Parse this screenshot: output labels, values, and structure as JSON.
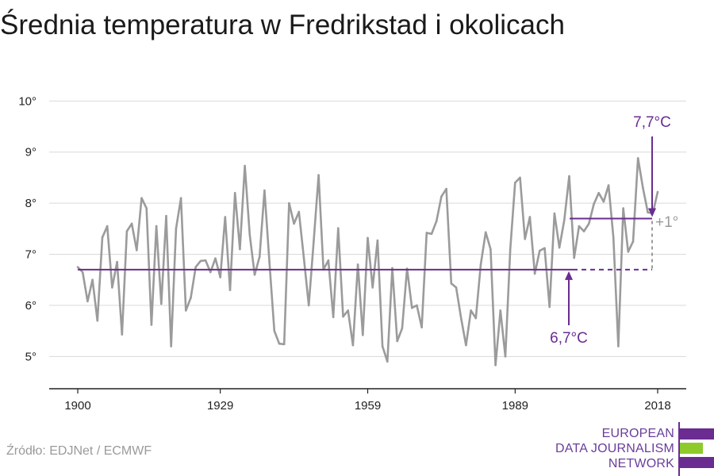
{
  "title": "Średnia temperatura w Fredrikstad i okolicach",
  "source": "Źródło: EDJNet / ECMWF",
  "logo": {
    "lines": [
      "EUROPEAN",
      "DATA JOURNALISM",
      "NETWORK"
    ],
    "colors": {
      "purple": "#6a2c91",
      "green": "#8ecb2a"
    }
  },
  "colors": {
    "line": "#9b9b9b",
    "accent": "#6a2c91",
    "grid": "#d9d9d9",
    "gray_label": "#9b9b9b"
  },
  "chart_data": {
    "type": "line",
    "title": "Średnia temperatura w Fredrikstad i okolicach",
    "xlabel": "",
    "ylabel": "",
    "x_ticks": [
      "1900",
      "1929",
      "1959",
      "1989",
      "2018"
    ],
    "y_ticks": [
      "5°",
      "6°",
      "7°",
      "8°",
      "9°",
      "10°"
    ],
    "xlim": [
      1900,
      2018
    ],
    "ylim": [
      4.2,
      10.3
    ],
    "grid": true,
    "x": [
      1900,
      1901,
      1902,
      1903,
      1904,
      1905,
      1906,
      1907,
      1908,
      1909,
      1910,
      1911,
      1912,
      1913,
      1914,
      1915,
      1916,
      1917,
      1918,
      1919,
      1920,
      1921,
      1922,
      1923,
      1924,
      1925,
      1926,
      1927,
      1928,
      1929,
      1930,
      1931,
      1932,
      1933,
      1934,
      1935,
      1936,
      1937,
      1938,
      1939,
      1940,
      1941,
      1942,
      1943,
      1944,
      1945,
      1946,
      1947,
      1948,
      1949,
      1950,
      1951,
      1952,
      1953,
      1954,
      1955,
      1956,
      1957,
      1958,
      1959,
      1960,
      1961,
      1962,
      1963,
      1964,
      1965,
      1966,
      1967,
      1968,
      1969,
      1970,
      1971,
      1972,
      1973,
      1974,
      1975,
      1976,
      1977,
      1978,
      1979,
      1980,
      1981,
      1982,
      1983,
      1984,
      1985,
      1986,
      1987,
      1988,
      1989,
      1990,
      1991,
      1992,
      1993,
      1994,
      1995,
      1996,
      1997,
      1998,
      1999,
      2000,
      2001,
      2002,
      2003,
      2004,
      2005,
      2006,
      2007,
      2008,
      2009,
      2010,
      2011,
      2012,
      2013,
      2014,
      2015,
      2016,
      2017,
      2018
    ],
    "series": [
      {
        "values": [
          6.75,
          6.65,
          6.08,
          6.5,
          5.7,
          7.33,
          7.55,
          6.35,
          6.85,
          5.43,
          7.45,
          7.6,
          7.08,
          8.1,
          7.9,
          5.62,
          7.55,
          6.03,
          7.75,
          5.2,
          7.5,
          8.1,
          5.9,
          6.15,
          6.75,
          6.87,
          6.88,
          6.65,
          6.92,
          6.55,
          7.73,
          6.3,
          8.2,
          7.1,
          8.73,
          7.38,
          6.6,
          6.95,
          8.25,
          6.85,
          5.5,
          5.25,
          5.24,
          8.0,
          7.6,
          7.83,
          6.93,
          6.0,
          7.25,
          8.55,
          6.7,
          6.88,
          5.77,
          7.51,
          5.78,
          5.9,
          5.22,
          6.8,
          5.42,
          7.32,
          6.35,
          7.27,
          5.2,
          4.9,
          6.73,
          5.3,
          5.55,
          6.72,
          5.95,
          6.0,
          5.57,
          7.42,
          7.4,
          7.65,
          8.13,
          8.28,
          6.43,
          6.35,
          5.75,
          5.22,
          5.9,
          5.75,
          6.8,
          7.43,
          7.1,
          4.83,
          5.9,
          5.0,
          7.1,
          8.4,
          8.5,
          7.3,
          7.73,
          6.62,
          7.07,
          7.12,
          5.97,
          7.8,
          7.13,
          7.67,
          8.53,
          6.93,
          7.55,
          7.45,
          7.6,
          7.98,
          8.2,
          8.03,
          8.35,
          7.33,
          5.2,
          7.9,
          7.05,
          7.25,
          8.88,
          8.3,
          7.82,
          7.8,
          8.22
        ]
      }
    ],
    "reference_lines": [
      {
        "label": "6,7°C",
        "value": 6.7
      },
      {
        "label": "7,7°C",
        "value": 7.7
      }
    ],
    "difference_label": "+1°"
  }
}
